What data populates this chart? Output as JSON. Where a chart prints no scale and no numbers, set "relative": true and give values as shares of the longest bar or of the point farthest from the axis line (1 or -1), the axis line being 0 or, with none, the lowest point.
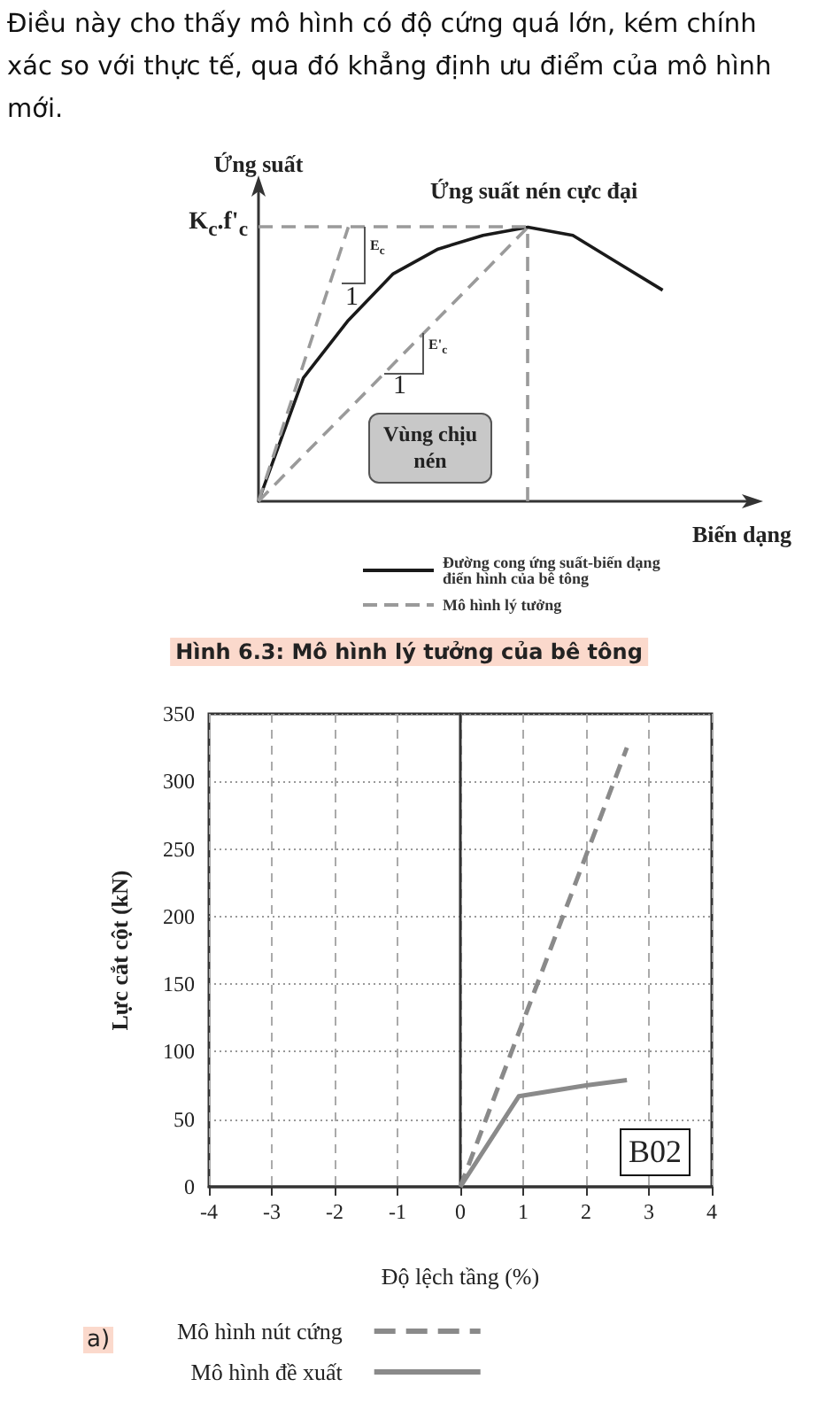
{
  "chart_data": [
    {
      "type": "line",
      "relative": true,
      "categories": [
        null,
        null,
        null,
        null,
        null,
        null,
        null,
        null,
        null,
        null,
        null,
        null
      ],
      "xlabel": "Biến dạng",
      "ylabel": "Ứng suất",
      "legend": "bottom",
      "marker": "none",
      "series": [
        {
          "name": "Đường cong ứng suất-biến dạng điển hình của bê tông",
          "color": "#1a1a1a",
          "line_style": "solid",
          "values": [
            0,
            0.45,
            0.66,
            0.83,
            0.92,
            0.97,
            1,
            0.97,
            0.87,
            0.77,
            null,
            null
          ]
        },
        {
          "name": "Mô hình lý tưởng",
          "color": "#9a9a9a",
          "line_style": "dashed",
          "values": [
            0,
            0.5,
            1,
            null,
            null,
            null,
            null,
            null,
            null,
            null,
            null,
            null
          ]
        },
        {
          "color": "#9a9a9a",
          "line_style": "dashed",
          "values": [
            0,
            0.167,
            0.333,
            0.5,
            0.667,
            0.833,
            1,
            null,
            null,
            null,
            null,
            null
          ]
        }
      ],
      "ref_lines": [
        {
          "axis": "y",
          "value": 1,
          "label": "K$_{c}$.f'$_{c}$",
          "line_style": "dashed",
          "color": "#9a9a9a"
        }
      ],
      "annotations": [
        "Điều này cho thấy mô hình có độ cứng quá lớn, kém chính xác so với thực tế, qua đó khẳng định ưu điểm của mô hình mới.",
        "Hình 6.3: Mô hình lý tưởng của bê tông",
        {
          "text": "Ứng suất nén cực đại",
          "y": 1
        },
        "E$_{c}$",
        "1",
        "E'$_{c}$",
        "1",
        "Vùng chịu nén"
      ]
    },
    {
      "type": "line",
      "xlim": [
        -4,
        4
      ],
      "xticks": [
        -4,
        -3,
        -2,
        -1,
        0,
        1,
        2,
        3,
        4
      ],
      "ylim": [
        0,
        350
      ],
      "yticks": [
        0,
        50,
        100,
        150,
        200,
        250,
        300,
        350
      ],
      "xlabel": "Độ lệch tầng (%)",
      "ylabel": "Lực cắt cột (kN)",
      "grid": true,
      "legend": "bottom",
      "marker": "none",
      "series": [
        {
          "name": "Mô hình nút cứng",
          "color": "#8a8a8a",
          "line_style": "dashed",
          "x": [
            0,
            2.65
          ],
          "values": [
            0,
            325
          ]
        },
        {
          "name": "Mô hình đề xuất",
          "color": "#8a8a8a",
          "line_style": "solid",
          "x": [
            0,
            0.93,
            2,
            2.65
          ],
          "values": [
            0,
            67,
            75,
            79
          ]
        }
      ],
      "annotations": [
        "B02",
        "a)"
      ]
    }
  ]
}
